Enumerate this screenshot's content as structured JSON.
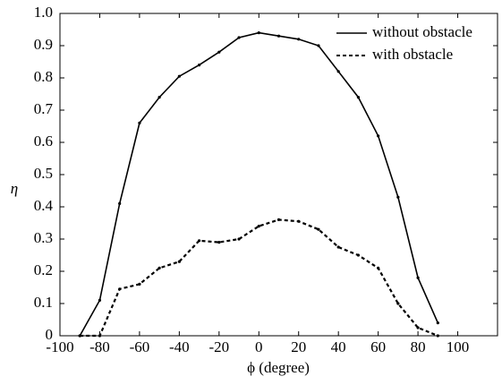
{
  "chart_data": {
    "type": "line",
    "x_label": "ϕ (degree)",
    "y_label": "η",
    "x": [
      -90,
      -80,
      -70,
      -60,
      -50,
      -40,
      -30,
      -20,
      -10,
      0,
      10,
      20,
      30,
      40,
      50,
      60,
      70,
      80,
      90
    ],
    "series": [
      {
        "name": "without obstacle",
        "color": "#000000",
        "dash": "solid",
        "values": [
          0,
          0.11,
          0.41,
          0.66,
          0.74,
          0.805,
          0.84,
          0.88,
          0.925,
          0.94,
          0.93,
          0.92,
          0.9,
          0.82,
          0.74,
          0.62,
          0.43,
          0.18,
          0.04
        ]
      },
      {
        "name": "with obstacle",
        "color": "#000000",
        "dash": "dashed",
        "values": [
          0,
          0,
          0.145,
          0.16,
          0.21,
          0.23,
          0.295,
          0.29,
          0.3,
          0.34,
          0.36,
          0.355,
          0.33,
          0.275,
          0.25,
          0.21,
          0.1,
          0.025,
          0
        ]
      }
    ],
    "xlim": [
      -100,
      120
    ],
    "xticks": [
      -100,
      -80,
      -60,
      -40,
      -20,
      0,
      20,
      40,
      60,
      80,
      100
    ],
    "ylim": [
      0,
      1
    ],
    "yticks": [
      0,
      0.1,
      0.2,
      0.3,
      0.4,
      0.5,
      0.6,
      0.7,
      0.8,
      0.9,
      {
        "value": 1,
        "label": "1.0"
      }
    ],
    "legend": "top-right",
    "grid": false
  }
}
